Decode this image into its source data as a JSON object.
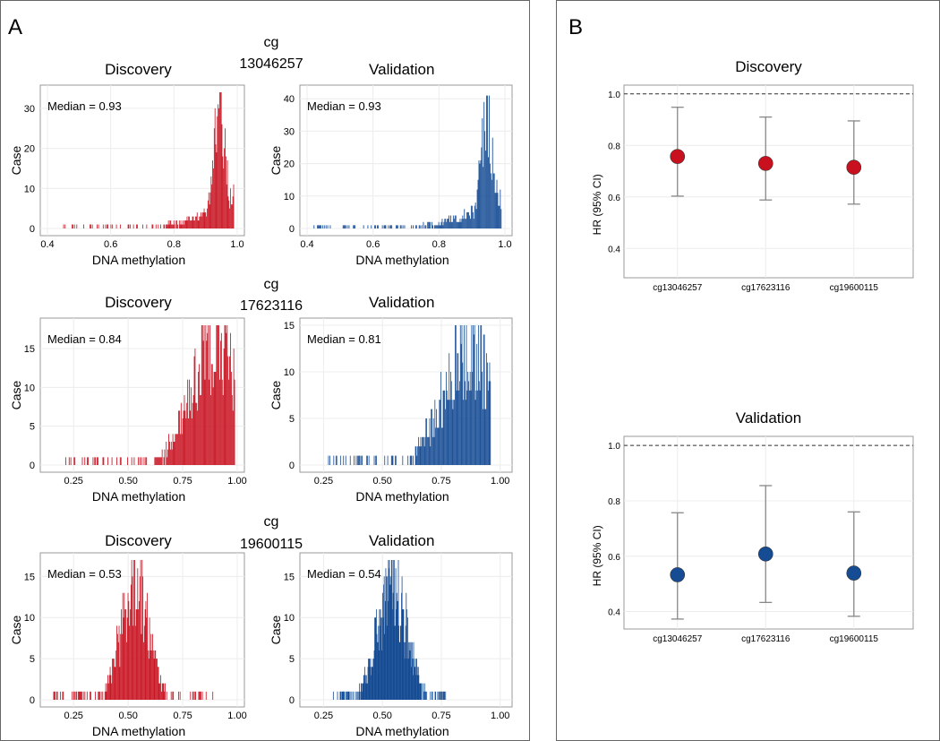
{
  "panels": {
    "A": {
      "label": "A"
    },
    "B": {
      "label": "B"
    }
  },
  "colors": {
    "discovery": "#c8101e",
    "validation": "#164c94",
    "frame": "#999999",
    "grid": "#ececec",
    "errbar": "#888888"
  },
  "chart_data": [
    {
      "type": "bar",
      "subtype": "histogram",
      "group_title": "cg 13046257",
      "title": "Discovery",
      "xlabel": "DNA methylation",
      "ylabel": "Case",
      "annotation": "Median = 0.93",
      "xlim": [
        0.4,
        1.0
      ],
      "ylim": [
        0,
        34
      ],
      "xticks": [
        0.4,
        0.6,
        0.8,
        1.0
      ],
      "xtick_labels": [
        "0.4",
        "0.6",
        "0.8",
        "1.0"
      ],
      "yticks": [
        0,
        10,
        20,
        30
      ],
      "ytick_labels": [
        "0",
        "10",
        "20",
        "30"
      ],
      "color": "#c8101e",
      "median": 0.93,
      "xmin": 0.45,
      "xmax": 0.99,
      "peak": 34
    },
    {
      "type": "bar",
      "subtype": "histogram",
      "title": "Validation",
      "xlabel": "DNA methylation",
      "ylabel": "Case",
      "annotation": "Median = 0.93",
      "xlim": [
        0.4,
        1.0
      ],
      "ylim": [
        0,
        42
      ],
      "xticks": [
        0.4,
        0.6,
        0.8,
        1.0
      ],
      "xtick_labels": [
        "0.4",
        "0.6",
        "0.8",
        "1.0"
      ],
      "yticks": [
        0,
        10,
        20,
        30,
        40
      ],
      "ytick_labels": [
        "0",
        "10",
        "20",
        "30",
        "40"
      ],
      "color": "#164c94",
      "median": 0.93,
      "xmin": 0.42,
      "xmax": 0.99,
      "peak": 41
    },
    {
      "type": "bar",
      "subtype": "histogram",
      "group_title": "cg 17623116",
      "title": "Discovery",
      "xlabel": "DNA methylation",
      "ylabel": "Case",
      "annotation": "Median = 0.84",
      "xlim": [
        0.13,
        1.0
      ],
      "ylim": [
        0,
        18
      ],
      "xticks": [
        0.25,
        0.5,
        0.75,
        1.0
      ],
      "xtick_labels": [
        "0.25",
        "0.50",
        "0.75",
        "1.00"
      ],
      "yticks": [
        0,
        5,
        10,
        15
      ],
      "ytick_labels": [
        "0",
        "5",
        "10",
        "15"
      ],
      "color": "#c8101e",
      "median": 0.84,
      "xmin": 0.16,
      "xmax": 0.99,
      "peak": 18
    },
    {
      "type": "bar",
      "subtype": "histogram",
      "title": "Validation",
      "xlabel": "DNA methylation",
      "ylabel": "Case",
      "annotation": "Median = 0.81",
      "xlim": [
        0.18,
        1.02
      ],
      "ylim": [
        0,
        15
      ],
      "xticks": [
        0.25,
        0.5,
        0.75,
        1.0
      ],
      "xtick_labels": [
        "0.25",
        "0.50",
        "0.75",
        "1.00"
      ],
      "yticks": [
        0,
        5,
        10,
        15
      ],
      "ytick_labels": [
        "0",
        "5",
        "10",
        "15"
      ],
      "color": "#164c94",
      "median": 0.81,
      "xmin": 0.26,
      "xmax": 0.96,
      "peak": 15
    },
    {
      "type": "bar",
      "subtype": "histogram",
      "group_title": "cg 19600115",
      "title": "Discovery",
      "xlabel": "DNA methylation",
      "ylabel": "Case",
      "annotation": "Median = 0.53",
      "xlim": [
        0.13,
        1.0
      ],
      "ylim": [
        0,
        17
      ],
      "xticks": [
        0.25,
        0.5,
        0.75,
        1.0
      ],
      "xtick_labels": [
        "0.25",
        "0.50",
        "0.75",
        "1.00"
      ],
      "yticks": [
        0,
        5,
        10,
        15
      ],
      "ytick_labels": [
        "0",
        "5",
        "10",
        "15"
      ],
      "color": "#c8101e",
      "median": 0.53,
      "xmin": 0.15,
      "xmax": 0.9,
      "peak": 17
    },
    {
      "type": "bar",
      "subtype": "histogram",
      "title": "Validation",
      "xlabel": "DNA methylation",
      "ylabel": "Case",
      "annotation": "Median = 0.54",
      "xlim": [
        0.18,
        1.02
      ],
      "ylim": [
        0,
        17
      ],
      "xticks": [
        0.25,
        0.5,
        0.75,
        1.0
      ],
      "xtick_labels": [
        "0.25",
        "0.50",
        "0.75",
        "1.00"
      ],
      "yticks": [
        0,
        5,
        10,
        15
      ],
      "ytick_labels": [
        "0",
        "5",
        "10",
        "15"
      ],
      "color": "#164c94",
      "median": 0.54,
      "xmin": 0.29,
      "xmax": 0.78,
      "peak": 17
    },
    {
      "type": "scatter",
      "subtype": "forest",
      "title": "Discovery",
      "ylabel": "HR (95% CI)",
      "categories": [
        "cg13046257",
        "cg17623116",
        "cg19600115"
      ],
      "values": [
        0.757,
        0.73,
        0.715
      ],
      "ci_lower": [
        0.603,
        0.588,
        0.572
      ],
      "ci_upper": [
        0.948,
        0.91,
        0.895
      ],
      "reference_line": 1.0,
      "ylim": [
        0.3,
        1.02
      ],
      "yticks": [
        0.4,
        0.6,
        0.8,
        1.0
      ],
      "ytick_labels": [
        "0.4",
        "0.6",
        "0.8",
        "1.0"
      ],
      "color": "#c8101e"
    },
    {
      "type": "scatter",
      "subtype": "forest",
      "title": "Validation",
      "ylabel": "HR (95% CI)",
      "categories": [
        "cg13046257",
        "cg17623116",
        "cg19600115"
      ],
      "values": [
        0.533,
        0.608,
        0.539
      ],
      "ci_lower": [
        0.373,
        0.433,
        0.383
      ],
      "ci_upper": [
        0.757,
        0.855,
        0.76
      ],
      "reference_line": 1.0,
      "ylim": [
        0.35,
        1.02
      ],
      "yticks": [
        0.4,
        0.6,
        0.8,
        1.0
      ],
      "ytick_labels": [
        "0.4",
        "0.6",
        "0.8",
        "1.0"
      ],
      "color": "#164c94"
    }
  ]
}
